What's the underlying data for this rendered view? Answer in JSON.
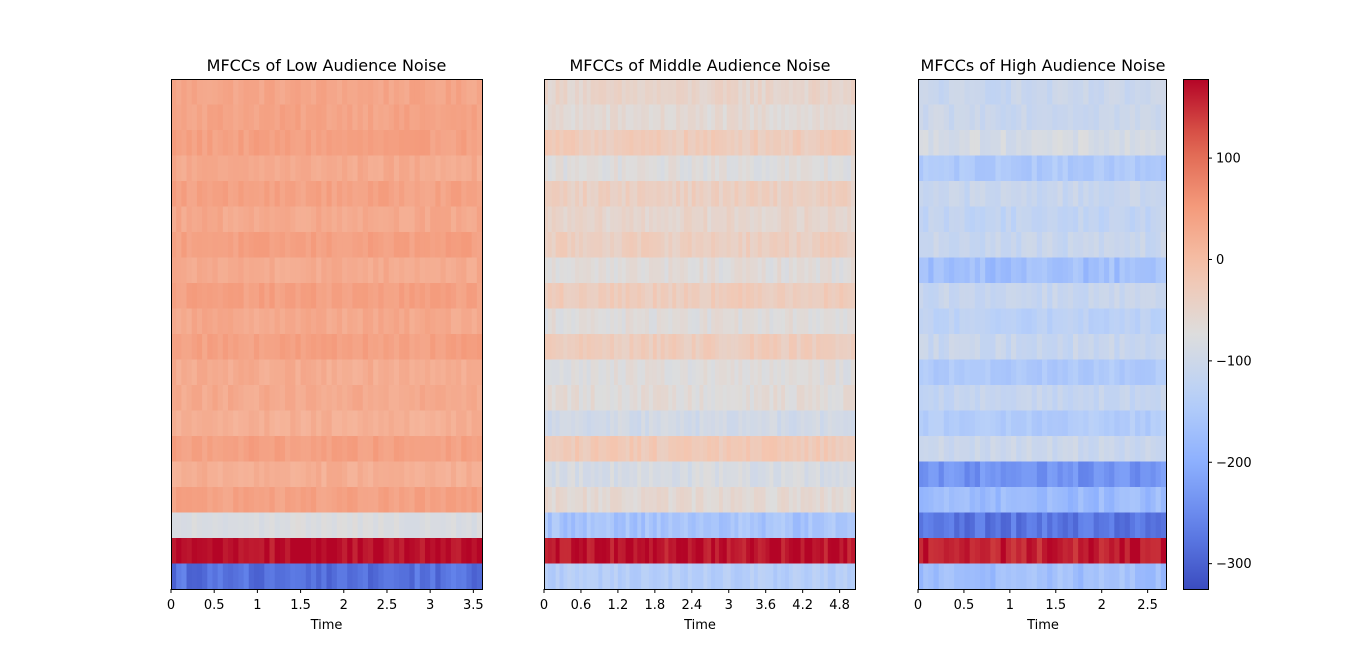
{
  "colors": {
    "cmap": "coolwarm"
  },
  "chart_data": [
    {
      "type": "heatmap",
      "title": "MFCCs of Low Audience Noise",
      "xlabel": "Time",
      "ylabel": "",
      "xlim": [
        0,
        3.6
      ],
      "xticks": [
        "0",
        "0.5",
        "1",
        "1.5",
        "2",
        "2.5",
        "3",
        "3.5"
      ],
      "xtick_values": [
        0,
        0.5,
        1,
        1.5,
        2,
        2.5,
        3,
        3.5
      ],
      "n_coefficients": 20,
      "coefficient_means_top_to_bottom": [
        35,
        38,
        42,
        28,
        40,
        30,
        42,
        28,
        42,
        30,
        42,
        25,
        28,
        20,
        42,
        22,
        40,
        -78,
        175,
        -280
      ],
      "time_steps": 60
    },
    {
      "type": "heatmap",
      "title": "MFCCs of Middle Audience Noise",
      "xlabel": "Time",
      "ylabel": "",
      "xlim": [
        0,
        5.05
      ],
      "xticks": [
        "0",
        "0.6",
        "1.2",
        "1.8",
        "2.4",
        "3",
        "3.6",
        "4.2",
        "4.8"
      ],
      "xtick_values": [
        0,
        0.6,
        1.2,
        1.8,
        2.4,
        3,
        3.6,
        4.2,
        4.8
      ],
      "n_coefficients": 20,
      "coefficient_means_top_to_bottom": [
        -50,
        -62,
        -30,
        -72,
        -38,
        -52,
        -36,
        -68,
        -30,
        -70,
        -32,
        -72,
        -66,
        -95,
        -25,
        -85,
        -60,
        -160,
        170,
        -140
      ],
      "time_steps": 80
    },
    {
      "type": "heatmap",
      "title": "MFCCs of High Audience Noise",
      "xlabel": "Time",
      "ylabel": "",
      "xlim": [
        0,
        2.7
      ],
      "xticks": [
        "0",
        "0.5",
        "1",
        "1.5",
        "2",
        "2.5"
      ],
      "xtick_values": [
        0,
        0.5,
        1,
        1.5,
        2,
        2.5
      ],
      "n_coefficients": 20,
      "coefficient_means_top_to_bottom": [
        -110,
        -105,
        -88,
        -150,
        -110,
        -120,
        -110,
        -170,
        -110,
        -130,
        -110,
        -150,
        -115,
        -145,
        -105,
        -240,
        -180,
        -275,
        160,
        -170
      ],
      "time_steps": 48
    }
  ],
  "colorbar": {
    "vmin": -325,
    "vmax": 178,
    "ticks": [
      "100",
      "0",
      "−100",
      "−200",
      "−300"
    ],
    "tick_values": [
      100,
      0,
      -100,
      -200,
      -300
    ]
  }
}
